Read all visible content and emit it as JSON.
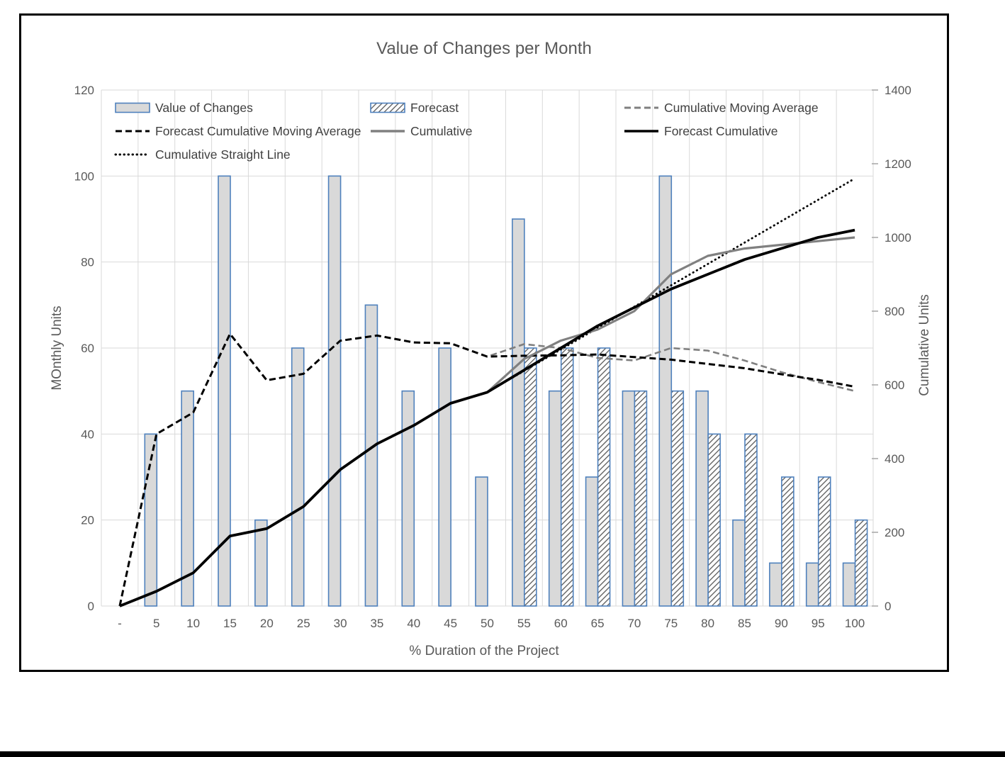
{
  "colors": {
    "bar_fill": "#d9d9d9",
    "bar_border": "#4f81bd",
    "hatch_stripe": "#595959",
    "gray_line": "#808080",
    "gray_dashed": "#7f7f7f",
    "black": "#000000",
    "gridline": "#d9d9d9",
    "axis_text": "#595959",
    "legend_text": "#404040",
    "tick_mark": "#a6a6a6"
  },
  "legend": {
    "items": [
      {
        "label": "Value of Changes",
        "swatch": "bar",
        "color": "#d9d9d9",
        "row": 0,
        "col": 0
      },
      {
        "label": "Forecast",
        "swatch": "hatch",
        "color": "#595959",
        "row": 0,
        "col": 1
      },
      {
        "label": "Cumulative Moving Average",
        "swatch": "line",
        "line_style": "dashed",
        "color": "#7f7f7f",
        "row": 0,
        "col": 2
      },
      {
        "label": "Forecast Cumulative Moving Average",
        "swatch": "line",
        "line_style": "dashed",
        "color": "#000000",
        "row": 1,
        "col": 0
      },
      {
        "label": "Cumulative",
        "swatch": "line",
        "line_style": "solid",
        "color": "#808080",
        "row": 1,
        "col": 1
      },
      {
        "label": "Forecast Cumulative",
        "swatch": "line",
        "line_style": "solid",
        "color": "#000000",
        "row": 1,
        "col": 2
      },
      {
        "label": "Cumulative Straight Line",
        "swatch": "line",
        "line_style": "dotted",
        "color": "#000000",
        "row": 2,
        "col": 0
      }
    ]
  },
  "chart_data": {
    "type": "combo-bar-line",
    "title": "Value of Changes per Month",
    "x_axis": {
      "title": "% Duration of the Project",
      "categories": [
        "-",
        "5",
        "10",
        "15",
        "20",
        "25",
        "30",
        "35",
        "40",
        "45",
        "50",
        "55",
        "60",
        "65",
        "70",
        "75",
        "80",
        "85",
        "90",
        "95",
        "100"
      ]
    },
    "left_axis": {
      "title": "MOnthly Units",
      "min": 0,
      "max": 120,
      "ticks": [
        0,
        20,
        40,
        60,
        80,
        100,
        120
      ]
    },
    "right_axis": {
      "title": "Cumulative Units",
      "min": 0,
      "max": 1400,
      "ticks": [
        0,
        200,
        400,
        600,
        800,
        1000,
        1200,
        1400
      ]
    },
    "series": [
      {
        "name": "Value of Changes",
        "kind": "bar",
        "bar_style": "solid",
        "axis": "left",
        "values": [
          null,
          40,
          50,
          100,
          20,
          60,
          100,
          70,
          50,
          60,
          30,
          90,
          50,
          30,
          50,
          100,
          50,
          20,
          10,
          10,
          10
        ]
      },
      {
        "name": "Forecast",
        "kind": "bar",
        "bar_style": "hatch",
        "axis": "left",
        "values": [
          null,
          null,
          null,
          null,
          null,
          null,
          null,
          null,
          null,
          null,
          null,
          60,
          60,
          60,
          50,
          50,
          40,
          40,
          30,
          30,
          20
        ]
      },
      {
        "name": "Cumulative Straight Line",
        "kind": "line",
        "line_style": "dotted",
        "color": "#000000",
        "width": 2.8,
        "axis": "right",
        "values": [
          null,
          null,
          null,
          null,
          null,
          null,
          null,
          null,
          null,
          null,
          580,
          638,
          696,
          754,
          812,
          870,
          928,
          986,
          1044,
          1102,
          1160
        ]
      },
      {
        "name": "Cumulative Moving Average",
        "kind": "line",
        "line_style": "dashed",
        "color": "#7f7f7f",
        "width": 2.6,
        "axis": "left",
        "values": [
          0,
          40,
          45,
          63.3,
          52.5,
          54,
          61.7,
          62.9,
          61.3,
          61.1,
          58,
          60.9,
          60,
          57.7,
          57.1,
          60,
          59.4,
          57.1,
          54.4,
          52.1,
          50
        ]
      },
      {
        "name": "Forecast Cumulative Moving Average",
        "kind": "line",
        "line_style": "dashed",
        "color": "#000000",
        "width": 3,
        "axis": "left",
        "values": [
          0,
          40,
          45,
          63.3,
          52.5,
          54,
          61.7,
          62.9,
          61.3,
          61.1,
          58,
          58.2,
          58.3,
          58.5,
          57.9,
          57.3,
          56.3,
          55.3,
          53.9,
          52.6,
          51
        ]
      },
      {
        "name": "Cumulative",
        "kind": "line",
        "line_style": "solid",
        "color": "#808080",
        "width": 3.2,
        "axis": "right",
        "values": [
          0,
          40,
          90,
          190,
          210,
          270,
          370,
          440,
          490,
          550,
          580,
          670,
          720,
          750,
          800,
          900,
          950,
          970,
          980,
          990,
          1000
        ]
      },
      {
        "name": "Forecast Cumulative",
        "kind": "line",
        "line_style": "solid",
        "color": "#000000",
        "width": 3.8,
        "axis": "right",
        "values": [
          0,
          40,
          90,
          190,
          210,
          270,
          370,
          440,
          490,
          550,
          580,
          640,
          700,
          760,
          810,
          860,
          900,
          940,
          970,
          1000,
          1020
        ]
      }
    ]
  }
}
